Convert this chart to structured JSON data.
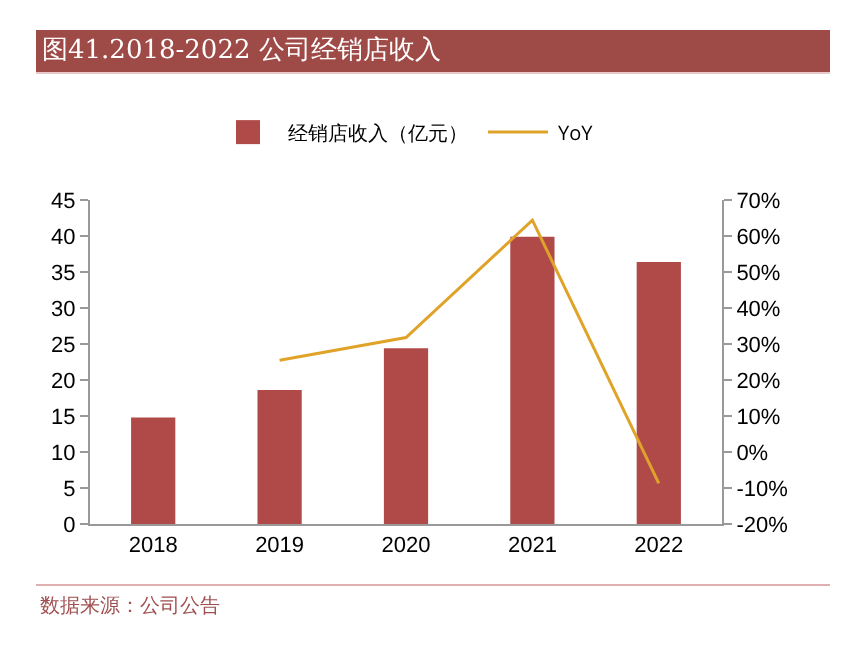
{
  "chart_data": {
    "type": "bar",
    "title": "图41.2018-2022 公司经销店收入",
    "categories": [
      "2018",
      "2019",
      "2020",
      "2021",
      "2022"
    ],
    "series": [
      {
        "name": "经销店收入（亿元）",
        "color": "#b04a48",
        "values": [
          14.8,
          18.6,
          24.4,
          39.9,
          36.4
        ]
      },
      {
        "name": "YoY",
        "type": "line",
        "axis": "y2",
        "color": "#e0a32a",
        "values": [
          null,
          25.5,
          31.8,
          64.4,
          -8.7
        ]
      }
    ],
    "ylim": [
      0,
      45
    ],
    "yticks": [
      0,
      5,
      10,
      15,
      20,
      25,
      30,
      35,
      40,
      45
    ],
    "y2lim": [
      -20,
      70
    ],
    "y2ticks": [
      {
        "value": -20,
        "label": "-20%"
      },
      {
        "value": -10,
        "label": "-10%"
      },
      {
        "value": 0,
        "label": "0%"
      },
      {
        "value": 10,
        "label": "10%"
      },
      {
        "value": 20,
        "label": "20%"
      },
      {
        "value": 30,
        "label": "30%"
      },
      {
        "value": 40,
        "label": "40%"
      },
      {
        "value": 50,
        "label": "50%"
      },
      {
        "value": 60,
        "label": "60%"
      },
      {
        "value": 70,
        "label": "70%"
      }
    ],
    "grid": false,
    "legend": "top",
    "marker": "none",
    "annotations": [
      "数据来源：公司公告"
    ]
  }
}
